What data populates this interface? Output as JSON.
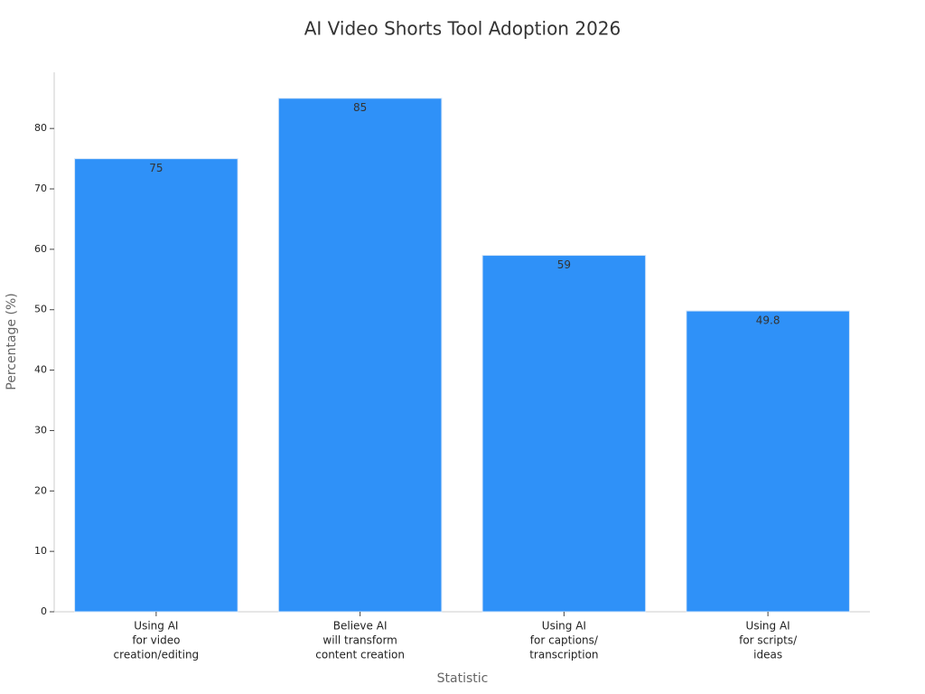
{
  "chart_data": {
    "type": "bar",
    "title": "AI Video Shorts Tool Adoption 2026",
    "x_label": "Statistic",
    "y_label": "Percentage (%)",
    "categories": [
      [
        "Using AI",
        "for video",
        "creation/editing"
      ],
      [
        "Believe AI",
        "will transform",
        "content creation"
      ],
      [
        "Using AI",
        "for captions/",
        "transcription"
      ],
      [
        "Using AI",
        "for scripts/",
        "ideas"
      ]
    ],
    "values": [
      75,
      85,
      59,
      49.8
    ],
    "color": "#2f91f8",
    "ylim": [
      0,
      89.3
    ],
    "yticks": [
      0,
      10,
      20,
      30,
      40,
      50,
      60,
      70,
      80
    ],
    "grid": false
  }
}
